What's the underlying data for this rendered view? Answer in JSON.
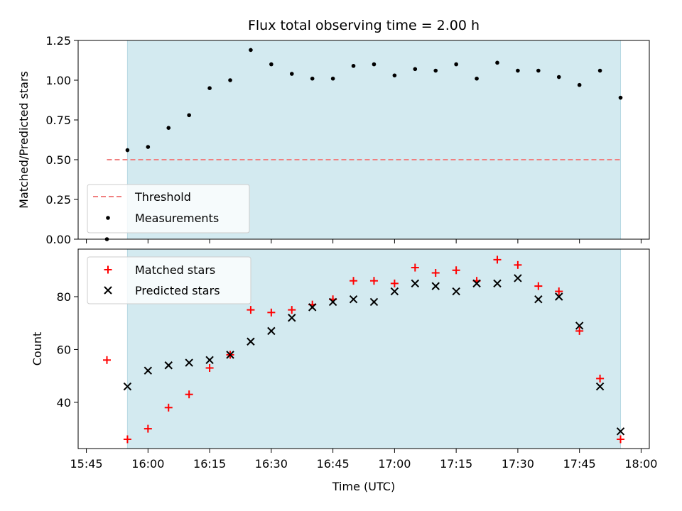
{
  "chart_data": [
    {
      "type": "scatter",
      "title": "Flux total observing time = 2.00 h",
      "xlabel": "",
      "ylabel": "Matched/Predicted stars",
      "ylim": [
        0.0,
        1.25
      ],
      "yticks": [
        "0.00",
        "0.25",
        "0.50",
        "0.75",
        "1.00",
        "1.25"
      ],
      "shaded_span": {
        "start": "15:55",
        "end": "17:55",
        "color": "#d3eaf0"
      },
      "threshold": {
        "name": "Threshold",
        "value": 0.5,
        "xrange": [
          "15:50",
          "17:55"
        ],
        "color": "#f08080",
        "style": "dashed"
      },
      "series": [
        {
          "name": "Measurements",
          "marker": "dot",
          "color": "#000000",
          "x": [
            "15:50",
            "15:55",
            "16:00",
            "16:05",
            "16:10",
            "16:15",
            "16:20",
            "16:25",
            "16:30",
            "16:35",
            "16:40",
            "16:45",
            "16:50",
            "16:55",
            "17:00",
            "17:05",
            "17:10",
            "17:15",
            "17:20",
            "17:25",
            "17:30",
            "17:35",
            "17:40",
            "17:45",
            "17:50",
            "17:55"
          ],
          "y": [
            0.0,
            0.56,
            0.58,
            0.7,
            0.78,
            0.95,
            1.0,
            1.19,
            1.1,
            1.04,
            1.01,
            1.01,
            1.09,
            1.1,
            1.03,
            1.07,
            1.06,
            1.1,
            1.01,
            1.11,
            1.06,
            1.06,
            1.02,
            0.97,
            1.06,
            0.89
          ]
        }
      ],
      "legend": {
        "placement": "lower-left",
        "entries": [
          "Threshold",
          "Measurements"
        ]
      }
    },
    {
      "type": "scatter",
      "title": "",
      "xlabel": "Time (UTC)",
      "ylabel": "Count",
      "ylim": [
        22.5,
        98
      ],
      "yticks": [
        "40",
        "60",
        "80"
      ],
      "xlim": [
        "15:43",
        "18:02"
      ],
      "xticks": [
        "15:45",
        "16:00",
        "16:15",
        "16:30",
        "16:45",
        "17:00",
        "17:15",
        "17:30",
        "17:45",
        "18:00"
      ],
      "shaded_span": {
        "start": "15:55",
        "end": "17:55",
        "color": "#d3eaf0"
      },
      "series": [
        {
          "name": "Matched stars",
          "marker": "plus",
          "color": "#ff0000",
          "x": [
            "15:50",
            "15:55",
            "16:00",
            "16:05",
            "16:10",
            "16:15",
            "16:20",
            "16:25",
            "16:30",
            "16:35",
            "16:40",
            "16:45",
            "16:50",
            "16:55",
            "17:00",
            "17:05",
            "17:10",
            "17:15",
            "17:20",
            "17:25",
            "17:30",
            "17:35",
            "17:40",
            "17:45",
            "17:50",
            "17:55"
          ],
          "y": [
            56,
            26,
            30,
            38,
            43,
            53,
            58,
            75,
            74,
            75,
            77,
            79,
            86,
            86,
            85,
            91,
            89,
            90,
            86,
            94,
            92,
            84,
            82,
            67,
            49,
            26
          ]
        },
        {
          "name": "Predicted stars",
          "marker": "x",
          "color": "#000000",
          "x": [
            "15:55",
            "16:00",
            "16:05",
            "16:10",
            "16:15",
            "16:20",
            "16:25",
            "16:30",
            "16:35",
            "16:40",
            "16:45",
            "16:50",
            "16:55",
            "17:00",
            "17:05",
            "17:10",
            "17:15",
            "17:20",
            "17:25",
            "17:30",
            "17:35",
            "17:40",
            "17:45",
            "17:50",
            "17:55"
          ],
          "y": [
            46,
            52,
            54,
            55,
            56,
            58,
            63,
            67,
            72,
            76,
            78,
            79,
            78,
            82,
            85,
            84,
            82,
            85,
            85,
            87,
            79,
            80,
            69,
            46,
            29
          ]
        }
      ],
      "legend": {
        "placement": "upper-left",
        "entries": [
          "Matched stars",
          "Predicted stars"
        ]
      }
    }
  ]
}
